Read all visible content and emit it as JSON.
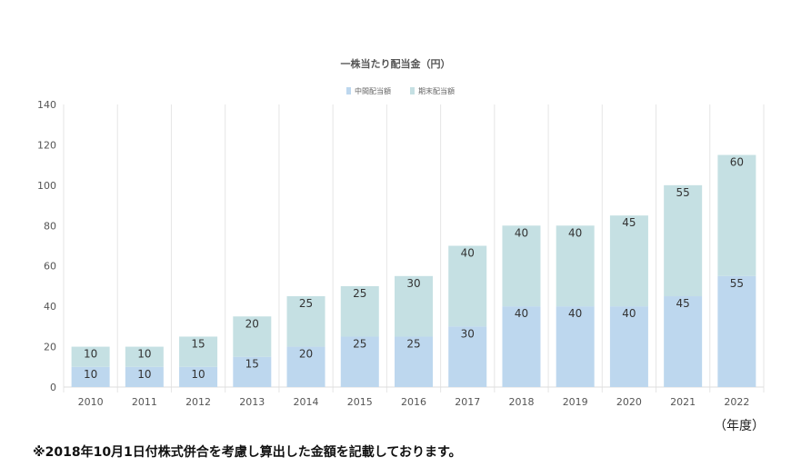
{
  "chart_data": {
    "type": "bar",
    "stacked": true,
    "title": "一株当たり配当金（円）",
    "categories": [
      "2010",
      "2011",
      "2012",
      "2013",
      "2014",
      "2015",
      "2016",
      "2017",
      "2018",
      "2019",
      "2020",
      "2021",
      "2022"
    ],
    "series": [
      {
        "name": "中間配当額",
        "color": "#bdd7ee",
        "values": [
          10,
          10,
          10,
          15,
          20,
          25,
          25,
          30,
          40,
          40,
          40,
          45,
          55
        ]
      },
      {
        "name": "期末配当額",
        "color": "#c5e0e3",
        "values": [
          10,
          10,
          15,
          20,
          25,
          25,
          30,
          40,
          40,
          40,
          45,
          55,
          60
        ]
      }
    ],
    "ylim": [
      0,
      140
    ],
    "yticks": [
      0,
      20,
      40,
      60,
      80,
      100,
      120,
      140
    ],
    "grid": "vertical",
    "legend": "top-center",
    "data_labels": true
  },
  "x_unit_label": "（年度）",
  "footnote": "※2018年10月1日付株式併合を考慮し算出した金額を記載しております。"
}
